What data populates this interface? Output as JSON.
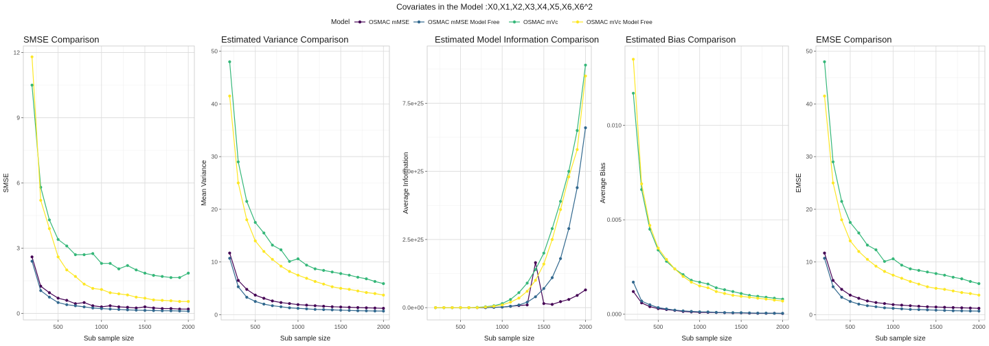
{
  "suptitle": "Covariates in the Model :X0,X1,X2,X3,X4,X5,X6,X6^2",
  "legend": {
    "title": "Model",
    "entries": [
      "OSMAC mMSE",
      "OSMAC mMSE Model Free",
      "OSMAC mVc",
      "OSMAC mVc Model Free"
    ],
    "colors": [
      "#440154",
      "#31688E",
      "#35B779",
      "#FDE725"
    ]
  },
  "chart_data": [
    {
      "type": "line",
      "title": "SMSE Comparison",
      "xlabel": "Sub sample size",
      "ylabel": "SMSE",
      "xlim": [
        100,
        2070
      ],
      "ylim": [
        -0.3,
        12.3
      ],
      "xticks": [
        500,
        1000,
        1500,
        2000
      ],
      "xtick_labels": [
        "500",
        "1000",
        "1500",
        "2000"
      ],
      "yticks": [
        0,
        3,
        6,
        9,
        12
      ],
      "ytick_labels": [
        "0",
        "3",
        "6",
        "9",
        "12"
      ],
      "grid": true,
      "x": [
        200,
        300,
        400,
        500,
        600,
        700,
        800,
        900,
        1000,
        1100,
        1200,
        1300,
        1400,
        1500,
        1600,
        1700,
        1800,
        1900,
        2000
      ],
      "series": [
        {
          "name": "OSMAC mMSE",
          "values": [
            2.6,
            1.25,
            0.95,
            0.7,
            0.6,
            0.45,
            0.5,
            0.35,
            0.3,
            0.35,
            0.3,
            0.28,
            0.25,
            0.3,
            0.25,
            0.22,
            0.22,
            0.2,
            0.2
          ]
        },
        {
          "name": "OSMAC mMSE Model Free",
          "values": [
            2.4,
            1.05,
            0.75,
            0.5,
            0.4,
            0.35,
            0.3,
            0.25,
            0.22,
            0.2,
            0.18,
            0.16,
            0.15,
            0.14,
            0.13,
            0.12,
            0.12,
            0.11,
            0.1
          ]
        },
        {
          "name": "OSMAC mVc",
          "values": [
            10.5,
            5.8,
            4.3,
            3.4,
            3.1,
            2.7,
            2.7,
            2.75,
            2.3,
            2.3,
            2.05,
            2.2,
            2.0,
            1.85,
            1.75,
            1.7,
            1.65,
            1.65,
            1.85
          ]
        },
        {
          "name": "OSMAC mVc Model Free",
          "values": [
            11.8,
            5.2,
            3.9,
            2.6,
            2.0,
            1.7,
            1.35,
            1.15,
            1.1,
            0.95,
            0.9,
            0.85,
            0.75,
            0.7,
            0.62,
            0.6,
            0.58,
            0.55,
            0.55
          ]
        }
      ]
    },
    {
      "type": "line",
      "title": "Estimated Variance Comparison",
      "xlabel": "Sub sample size",
      "ylabel": "Mean Variance",
      "xlim": [
        100,
        2070
      ],
      "ylim": [
        -1,
        51
      ],
      "xticks": [
        500,
        1000,
        1500,
        2000
      ],
      "xtick_labels": [
        "500",
        "1000",
        "1500",
        "2000"
      ],
      "yticks": [
        0,
        10,
        20,
        30,
        40,
        50
      ],
      "ytick_labels": [
        "0",
        "10",
        "20",
        "30",
        "40",
        "50"
      ],
      "grid": true,
      "x": [
        200,
        300,
        400,
        500,
        600,
        700,
        800,
        900,
        1000,
        1100,
        1200,
        1300,
        1400,
        1500,
        1600,
        1700,
        1800,
        1900,
        2000
      ],
      "series": [
        {
          "name": "OSMAC mMSE",
          "values": [
            11.7,
            6.5,
            4.8,
            3.7,
            3.1,
            2.6,
            2.3,
            2.1,
            1.9,
            1.8,
            1.7,
            1.6,
            1.5,
            1.45,
            1.4,
            1.35,
            1.3,
            1.25,
            1.2
          ]
        },
        {
          "name": "OSMAC mMSE Model Free",
          "values": [
            10.7,
            5.3,
            3.3,
            2.5,
            2.0,
            1.7,
            1.5,
            1.3,
            1.2,
            1.1,
            1.0,
            0.95,
            0.9,
            0.85,
            0.8,
            0.75,
            0.72,
            0.7,
            0.68
          ]
        },
        {
          "name": "OSMAC mVc",
          "values": [
            48,
            29,
            21.5,
            17.5,
            15.5,
            13.2,
            12.3,
            10.1,
            10.6,
            9.4,
            8.7,
            8.4,
            8.1,
            7.8,
            7.5,
            7.1,
            6.8,
            6.3,
            5.9
          ]
        },
        {
          "name": "OSMAC mVc Model Free",
          "values": [
            41.5,
            25,
            18,
            14,
            12,
            10.5,
            9.2,
            8.2,
            7.5,
            6.9,
            6.3,
            5.8,
            5.3,
            5.0,
            4.8,
            4.5,
            4.2,
            4.0,
            3.7
          ]
        }
      ]
    },
    {
      "type": "line",
      "title": "Estimated Model Information Comparison",
      "xlabel": "Sub sample size",
      "ylabel": "Average Information",
      "xlim": [
        100,
        2070
      ],
      "ylim": [
        -0.45,
        9.6
      ],
      "xticks": [
        500,
        1000,
        1500,
        2000
      ],
      "xtick_labels": [
        "500",
        "1000",
        "1500",
        "2000"
      ],
      "yticks": [
        0,
        2.5,
        5.0,
        7.5
      ],
      "ytick_labels": [
        "0.0e+00",
        "2.5e+25",
        "5.0e+25",
        "7.5e+25"
      ],
      "grid": true,
      "x": [
        200,
        300,
        400,
        500,
        600,
        700,
        800,
        900,
        1000,
        1100,
        1200,
        1300,
        1400,
        1500,
        1600,
        1700,
        1800,
        1900,
        2000
      ],
      "series": [
        {
          "name": "OSMAC mMSE",
          "values": [
            0,
            0,
            0,
            0,
            0,
            0,
            0,
            0.01,
            0.02,
            0.05,
            0.08,
            0.1,
            1.65,
            0.15,
            0.12,
            0.22,
            0.3,
            0.45,
            0.65
          ]
        },
        {
          "name": "OSMAC mMSE Model Free",
          "values": [
            0,
            0,
            0,
            0,
            0,
            0,
            0,
            0.01,
            0.02,
            0.05,
            0.1,
            0.2,
            0.4,
            0.7,
            1.1,
            1.8,
            2.9,
            4.4,
            6.6
          ]
        },
        {
          "name": "OSMAC mVc",
          "values": [
            0,
            0,
            0,
            0,
            0,
            0.01,
            0.03,
            0.07,
            0.15,
            0.3,
            0.55,
            0.9,
            1.4,
            2.0,
            2.9,
            3.9,
            5.0,
            6.5,
            8.9
          ]
        },
        {
          "name": "OSMAC mVc Model Free",
          "values": [
            0,
            0,
            0,
            0,
            0,
            0,
            0.02,
            0.05,
            0.1,
            0.2,
            0.35,
            0.6,
            1.0,
            1.6,
            2.5,
            3.6,
            4.8,
            5.8,
            8.5
          ]
        }
      ]
    },
    {
      "type": "line",
      "title": "Estimated Bias Comparison",
      "xlabel": "Sub sample size",
      "ylabel": "Average Bias",
      "xlim": [
        100,
        2070
      ],
      "ylim": [
        -0.0003,
        0.0142
      ],
      "xticks": [
        500,
        1000,
        1500,
        2000
      ],
      "xtick_labels": [
        "500",
        "1000",
        "1500",
        "2000"
      ],
      "yticks": [
        0,
        0.005,
        0.01
      ],
      "ytick_labels": [
        "0.000",
        "0.005",
        "0.010"
      ],
      "grid": true,
      "x": [
        200,
        300,
        400,
        500,
        600,
        700,
        800,
        900,
        1000,
        1100,
        1200,
        1300,
        1400,
        1500,
        1600,
        1700,
        1800,
        1900,
        2000
      ],
      "series": [
        {
          "name": "OSMAC mMSE",
          "values": [
            0.0012,
            0.0006,
            0.0004,
            0.0003,
            0.00025,
            0.0002,
            0.00015,
            0.00012,
            0.0001,
            0.0001,
            9e-05,
            8e-05,
            7e-05,
            7e-05,
            6e-05,
            5e-05,
            5e-05,
            5e-05,
            4e-05
          ]
        },
        {
          "name": "OSMAC mMSE Model Free",
          "values": [
            0.0017,
            0.0007,
            0.0005,
            0.00035,
            0.00028,
            0.00022,
            0.00018,
            0.00015,
            0.00013,
            0.00012,
            0.0001,
            9e-05,
            8e-05,
            8e-05,
            7e-05,
            6e-05,
            6e-05,
            5e-05,
            5e-05
          ]
        },
        {
          "name": "OSMAC mVc",
          "values": [
            0.0117,
            0.0066,
            0.0045,
            0.0034,
            0.0028,
            0.0024,
            0.0021,
            0.0018,
            0.0017,
            0.0016,
            0.0014,
            0.0013,
            0.0012,
            0.0011,
            0.001,
            0.00095,
            0.0009,
            0.00085,
            0.0008
          ]
        },
        {
          "name": "OSMAC mVc Model Free",
          "values": [
            0.0135,
            0.0069,
            0.0047,
            0.0035,
            0.0029,
            0.0024,
            0.002,
            0.0017,
            0.0015,
            0.0014,
            0.0012,
            0.0011,
            0.001,
            0.00095,
            0.0009,
            0.00085,
            0.0008,
            0.00075,
            0.0007
          ]
        }
      ]
    },
    {
      "type": "line",
      "title": "EMSE Comparison",
      "xlabel": "Sub sample size",
      "ylabel": "EMSE",
      "xlim": [
        100,
        2070
      ],
      "ylim": [
        -1,
        51
      ],
      "xticks": [
        500,
        1000,
        1500,
        2000
      ],
      "xtick_labels": [
        "500",
        "1000",
        "1500",
        "2000"
      ],
      "yticks": [
        0,
        10,
        20,
        30,
        40,
        50
      ],
      "ytick_labels": [
        "0",
        "10",
        "20",
        "30",
        "40",
        "50"
      ],
      "grid": true,
      "x": [
        200,
        300,
        400,
        500,
        600,
        700,
        800,
        900,
        1000,
        1100,
        1200,
        1300,
        1400,
        1500,
        1600,
        1700,
        1800,
        1900,
        2000
      ],
      "series": [
        {
          "name": "OSMAC mMSE",
          "values": [
            11.7,
            6.5,
            4.8,
            3.7,
            3.1,
            2.6,
            2.3,
            2.1,
            1.9,
            1.8,
            1.7,
            1.6,
            1.5,
            1.45,
            1.4,
            1.35,
            1.3,
            1.25,
            1.2
          ]
        },
        {
          "name": "OSMAC mMSE Model Free",
          "values": [
            10.7,
            5.3,
            3.3,
            2.5,
            2.0,
            1.7,
            1.5,
            1.3,
            1.2,
            1.1,
            1.0,
            0.95,
            0.9,
            0.85,
            0.8,
            0.75,
            0.72,
            0.7,
            0.68
          ]
        },
        {
          "name": "OSMAC mVc",
          "values": [
            48,
            29,
            21.5,
            17.5,
            15.5,
            13.2,
            12.3,
            10.1,
            10.6,
            9.4,
            8.7,
            8.4,
            8.1,
            7.8,
            7.5,
            7.1,
            6.8,
            6.3,
            5.9
          ]
        },
        {
          "name": "OSMAC mVc Model Free",
          "values": [
            41.5,
            25,
            18,
            14,
            12,
            10.5,
            9.2,
            8.2,
            7.5,
            6.9,
            6.3,
            5.8,
            5.3,
            5.0,
            4.8,
            4.5,
            4.2,
            4.0,
            3.7
          ]
        }
      ]
    }
  ]
}
